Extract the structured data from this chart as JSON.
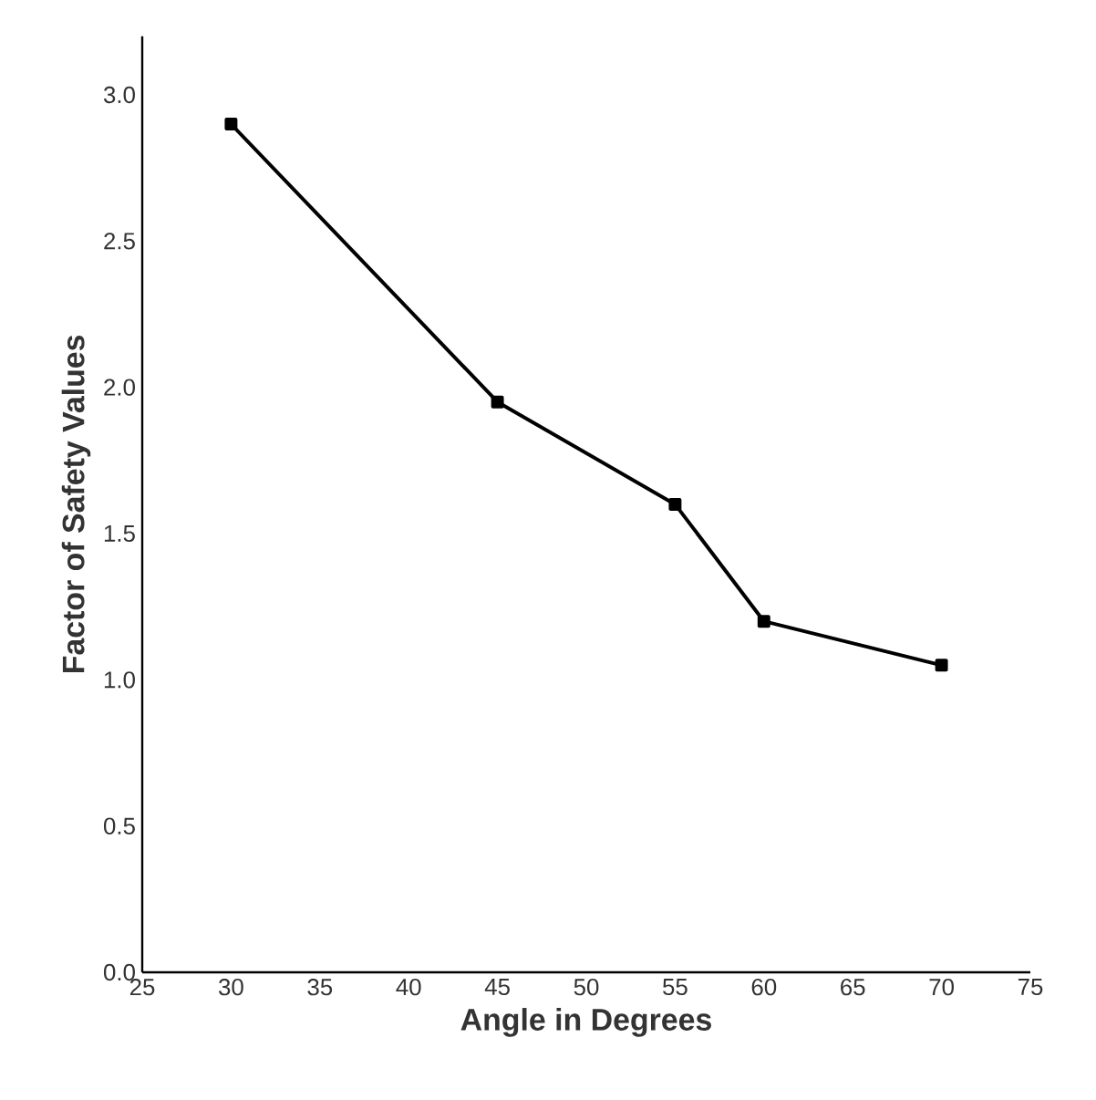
{
  "chart_data": {
    "type": "line",
    "xlabel": "Angle in Degrees",
    "ylabel": "Factor of Safety Values",
    "x": [
      30,
      45,
      55,
      60,
      70
    ],
    "series": [
      {
        "color": "#000000",
        "values": [
          2.9,
          1.95,
          1.6,
          1.2,
          1.05
        ]
      }
    ],
    "xlim": [
      25,
      75
    ],
    "xticks": [
      25,
      30,
      35,
      40,
      45,
      50,
      55,
      60,
      65,
      70,
      75
    ],
    "ylim": [
      0,
      3.2
    ],
    "yticks": [
      {
        "value": 0,
        "label": "0.0"
      },
      {
        "value": 0.5,
        "label": "0.5"
      },
      {
        "value": 1,
        "label": "1.0"
      },
      {
        "value": 1.5,
        "label": "1.5"
      },
      {
        "value": 2,
        "label": "2.0"
      },
      {
        "value": 2.5,
        "label": "2.5"
      },
      {
        "value": 3,
        "label": "3.0"
      }
    ],
    "grid": false,
    "marker": "square",
    "line_style": "solid"
  }
}
